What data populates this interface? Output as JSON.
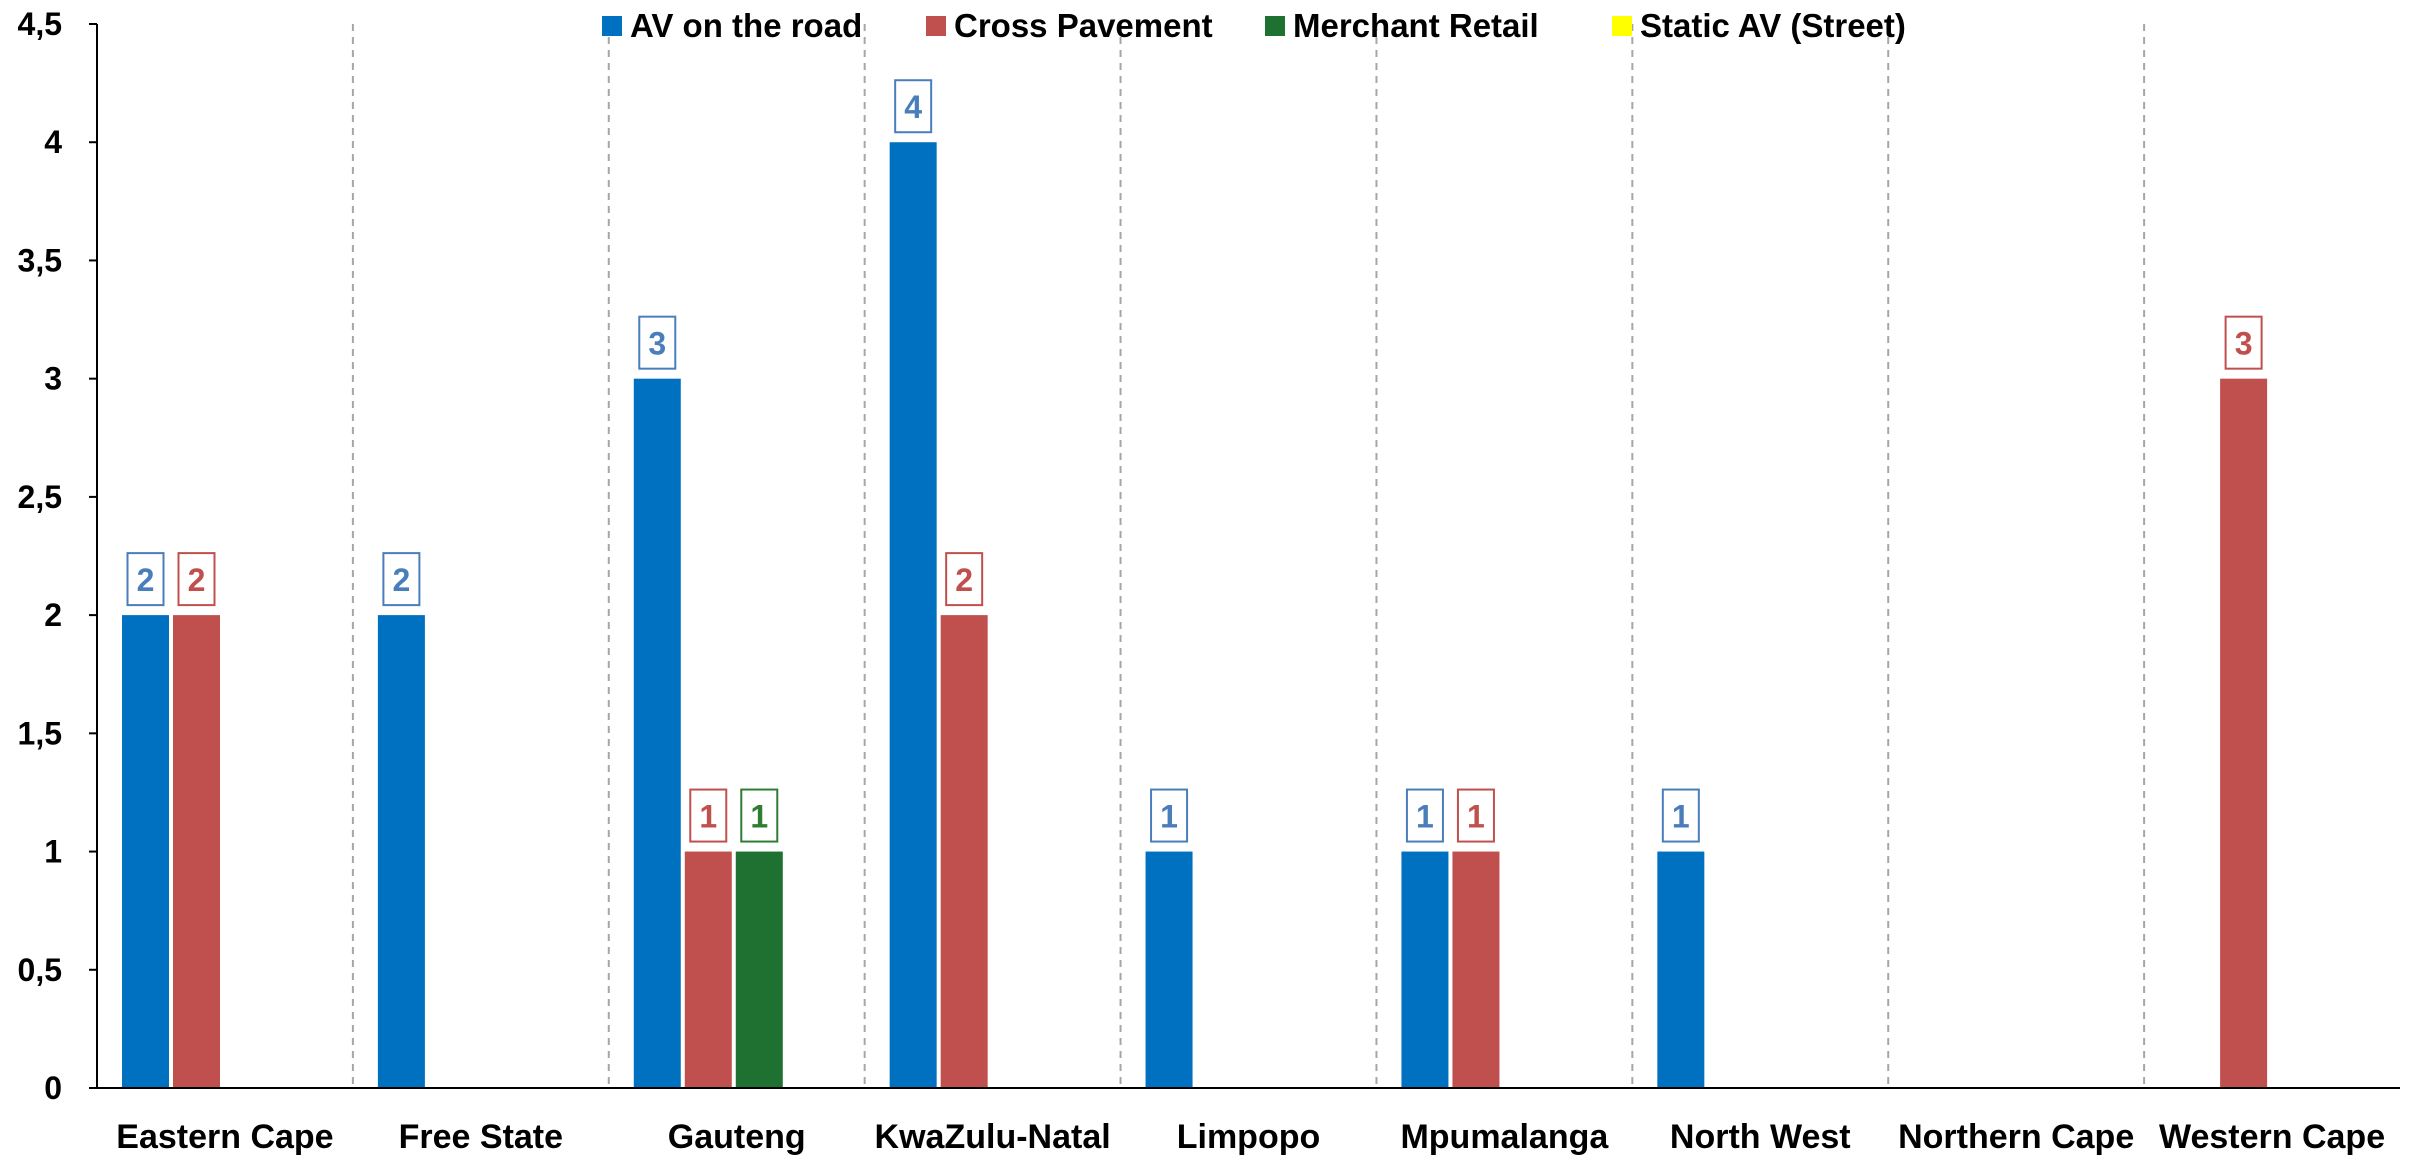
{
  "chart_data": {
    "type": "bar",
    "title": "",
    "xlabel": "",
    "ylabel": "",
    "categories": [
      "Eastern Cape",
      "Free State",
      "Gauteng",
      "KwaZulu-Natal",
      "Limpopo",
      "Mpumalanga",
      "North West",
      "Northern Cape",
      "Western Cape"
    ],
    "series": [
      {
        "name": "AV on the road",
        "color": "#0070C0",
        "label_color": "#4A7EBB",
        "values": [
          2,
          2,
          3,
          4,
          1,
          1,
          1,
          0,
          0
        ]
      },
      {
        "name": "Cross Pavement",
        "color": "#C0504D",
        "label_color": "#C0504D",
        "values": [
          2,
          0,
          1,
          2,
          0,
          1,
          0,
          0,
          3
        ]
      },
      {
        "name": "Merchant Retail",
        "color": "#1E7130",
        "label_color": "#2E7D32",
        "values": [
          0,
          0,
          1,
          0,
          0,
          0,
          0,
          0,
          0
        ]
      },
      {
        "name": "Static AV (Street)",
        "color": "#FFFF00",
        "label_color": "#B8B800",
        "values": [
          0,
          0,
          0,
          0,
          0,
          0,
          0,
          0,
          0
        ]
      }
    ],
    "yticks": [
      "0",
      "0,5",
      "1",
      "1,5",
      "2",
      "2,5",
      "3",
      "3,5",
      "4",
      "4,5"
    ],
    "ylim": [
      0,
      4.5
    ],
    "ytick_step": 0.5,
    "grid": "vertical-dashed-category-separators",
    "legend_position": "top",
    "data_labels": true
  }
}
